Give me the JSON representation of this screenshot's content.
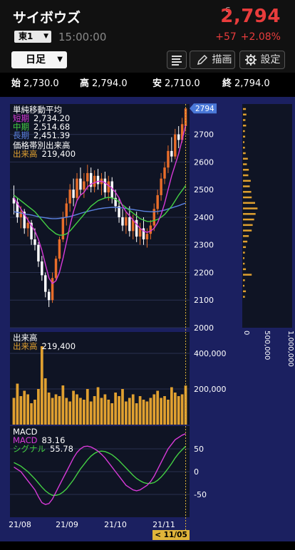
{
  "header": {
    "company": "サイボウズ",
    "market": "東1",
    "time": "15:00:00",
    "price_flag": "C",
    "price": "2,794",
    "change": "+57",
    "change_pct": "+2.08%"
  },
  "toolbar": {
    "period": "日足",
    "draw_label": "描画",
    "settings_label": "設定"
  },
  "ohlc": [
    {
      "key": "始",
      "value": "2,730.0"
    },
    {
      "key": "高",
      "value": "2,794.0"
    },
    {
      "key": "安",
      "value": "2,710.0"
    },
    {
      "key": "終",
      "value": "2,794.0"
    }
  ],
  "colors": {
    "background": "#1b2060",
    "panel": "#0f1424",
    "up": "#e86d2a",
    "down": "#ffffff",
    "ma_short": "#d83ad8",
    "ma_mid": "#44d044",
    "ma_long": "#5b82e0",
    "volume": "#e0a030",
    "price_tag": "#4a78d8",
    "price_red": "#e83c3c"
  },
  "legend_price": {
    "title": "単純移動平均",
    "short_label": "短期",
    "short_value": "2,734.20",
    "mid_label": "中期",
    "mid_value": "2,514.68",
    "long_label": "長期",
    "long_value": "2,451.39",
    "band_title": "価格帯別出来高",
    "vol_label": "出来高",
    "vol_value": "219,400"
  },
  "legend_volume": {
    "title": "出来高",
    "vol_label": "出来高",
    "vol_value": "219,400"
  },
  "legend_macd": {
    "title": "MACD",
    "macd_label": "MACD",
    "macd_value": "83.16",
    "signal_label": "シグナル",
    "signal_value": "55.78"
  },
  "date_badge": "< 11/05 >",
  "chart_data": {
    "type": "candlestick",
    "price_axis": {
      "ticks": [
        "2700",
        "2600",
        "2500",
        "2400",
        "2300",
        "2200",
        "2100",
        "2000"
      ],
      "range": [
        2000,
        2810
      ]
    },
    "last_price_tag": "2794",
    "x_labels": [
      "21/08",
      "21/09",
      "21/10",
      "21/11"
    ],
    "volume_axis": {
      "ticks": [
        "400,000",
        "200,000"
      ]
    },
    "macd_axis": {
      "ticks": [
        "50",
        "0",
        "-50"
      ]
    },
    "band_axis": {
      "ticks": [
        "0",
        "500,000",
        "1,000,000"
      ]
    },
    "candles": [
      {
        "o": 2470,
        "h": 2515,
        "l": 2410,
        "c": 2450
      },
      {
        "o": 2455,
        "h": 2470,
        "l": 2380,
        "c": 2400
      },
      {
        "o": 2400,
        "h": 2440,
        "l": 2360,
        "c": 2420
      },
      {
        "o": 2420,
        "h": 2430,
        "l": 2340,
        "c": 2360
      },
      {
        "o": 2360,
        "h": 2400,
        "l": 2330,
        "c": 2380
      },
      {
        "o": 2380,
        "h": 2390,
        "l": 2300,
        "c": 2320
      },
      {
        "o": 2320,
        "h": 2360,
        "l": 2280,
        "c": 2300
      },
      {
        "o": 2300,
        "h": 2310,
        "l": 2220,
        "c": 2240
      },
      {
        "o": 2240,
        "h": 2260,
        "l": 2170,
        "c": 2190
      },
      {
        "o": 2190,
        "h": 2200,
        "l": 2110,
        "c": 2130
      },
      {
        "o": 2130,
        "h": 2140,
        "l": 2075,
        "c": 2100
      },
      {
        "o": 2100,
        "h": 2200,
        "l": 2090,
        "c": 2180
      },
      {
        "o": 2180,
        "h": 2260,
        "l": 2170,
        "c": 2250
      },
      {
        "o": 2250,
        "h": 2330,
        "l": 2240,
        "c": 2320
      },
      {
        "o": 2320,
        "h": 2420,
        "l": 2310,
        "c": 2400
      },
      {
        "o": 2400,
        "h": 2470,
        "l": 2370,
        "c": 2450
      },
      {
        "o": 2450,
        "h": 2520,
        "l": 2420,
        "c": 2500
      },
      {
        "o": 2500,
        "h": 2540,
        "l": 2440,
        "c": 2470
      },
      {
        "o": 2470,
        "h": 2560,
        "l": 2460,
        "c": 2540
      },
      {
        "o": 2540,
        "h": 2580,
        "l": 2480,
        "c": 2500
      },
      {
        "o": 2500,
        "h": 2560,
        "l": 2470,
        "c": 2530
      },
      {
        "o": 2530,
        "h": 2590,
        "l": 2500,
        "c": 2560
      },
      {
        "o": 2560,
        "h": 2580,
        "l": 2490,
        "c": 2510
      },
      {
        "o": 2510,
        "h": 2570,
        "l": 2490,
        "c": 2550
      },
      {
        "o": 2550,
        "h": 2575,
        "l": 2500,
        "c": 2520
      },
      {
        "o": 2520,
        "h": 2560,
        "l": 2480,
        "c": 2540
      },
      {
        "o": 2540,
        "h": 2565,
        "l": 2470,
        "c": 2490
      },
      {
        "o": 2490,
        "h": 2550,
        "l": 2460,
        "c": 2530
      },
      {
        "o": 2530,
        "h": 2545,
        "l": 2450,
        "c": 2470
      },
      {
        "o": 2470,
        "h": 2500,
        "l": 2420,
        "c": 2440
      },
      {
        "o": 2440,
        "h": 2470,
        "l": 2380,
        "c": 2400
      },
      {
        "o": 2400,
        "h": 2430,
        "l": 2350,
        "c": 2370
      },
      {
        "o": 2370,
        "h": 2420,
        "l": 2340,
        "c": 2400
      },
      {
        "o": 2400,
        "h": 2440,
        "l": 2330,
        "c": 2350
      },
      {
        "o": 2350,
        "h": 2410,
        "l": 2320,
        "c": 2390
      },
      {
        "o": 2390,
        "h": 2420,
        "l": 2310,
        "c": 2330
      },
      {
        "o": 2330,
        "h": 2380,
        "l": 2300,
        "c": 2360
      },
      {
        "o": 2360,
        "h": 2400,
        "l": 2300,
        "c": 2320
      },
      {
        "o": 2320,
        "h": 2360,
        "l": 2290,
        "c": 2340
      },
      {
        "o": 2340,
        "h": 2390,
        "l": 2320,
        "c": 2370
      },
      {
        "o": 2370,
        "h": 2450,
        "l": 2350,
        "c": 2430
      },
      {
        "o": 2430,
        "h": 2500,
        "l": 2410,
        "c": 2480
      },
      {
        "o": 2480,
        "h": 2560,
        "l": 2460,
        "c": 2540
      },
      {
        "o": 2540,
        "h": 2600,
        "l": 2520,
        "c": 2580
      },
      {
        "o": 2580,
        "h": 2660,
        "l": 2560,
        "c": 2640
      },
      {
        "o": 2640,
        "h": 2690,
        "l": 2600,
        "c": 2620
      },
      {
        "o": 2620,
        "h": 2720,
        "l": 2610,
        "c": 2700
      },
      {
        "o": 2700,
        "h": 2730,
        "l": 2650,
        "c": 2680
      },
      {
        "o": 2680,
        "h": 2760,
        "l": 2670,
        "c": 2737
      },
      {
        "o": 2730,
        "h": 2794,
        "l": 2710,
        "c": 2794
      }
    ],
    "ma_short": [
      2470,
      2450,
      2430,
      2410,
      2390,
      2370,
      2350,
      2320,
      2280,
      2230,
      2180,
      2160,
      2170,
      2200,
      2250,
      2310,
      2370,
      2420,
      2460,
      2480,
      2490,
      2510,
      2520,
      2525,
      2530,
      2530,
      2525,
      2515,
      2505,
      2490,
      2470,
      2440,
      2420,
      2405,
      2390,
      2375,
      2360,
      2350,
      2345,
      2350,
      2360,
      2380,
      2410,
      2450,
      2500,
      2550,
      2590,
      2630,
      2680,
      2734
    ],
    "ma_mid": [
      2480,
      2470,
      2460,
      2450,
      2440,
      2430,
      2420,
      2405,
      2390,
      2375,
      2360,
      2350,
      2340,
      2335,
      2335,
      2340,
      2350,
      2365,
      2380,
      2395,
      2410,
      2425,
      2440,
      2450,
      2460,
      2465,
      2470,
      2472,
      2470,
      2465,
      2455,
      2445,
      2435,
      2425,
      2415,
      2405,
      2395,
      2390,
      2385,
      2385,
      2388,
      2392,
      2400,
      2410,
      2425,
      2440,
      2460,
      2480,
      2497,
      2515
    ],
    "ma_long": [
      2420,
      2418,
      2415,
      2412,
      2410,
      2408,
      2405,
      2402,
      2400,
      2398,
      2396,
      2395,
      2395,
      2396,
      2398,
      2400,
      2403,
      2406,
      2410,
      2414,
      2418,
      2421,
      2424,
      2427,
      2430,
      2432,
      2434,
      2435,
      2436,
      2436,
      2435,
      2434,
      2432,
      2430,
      2428,
      2426,
      2424,
      2422,
      2421,
      2420,
      2420,
      2421,
      2423,
      2426,
      2430,
      2434,
      2438,
      2442,
      2447,
      2451
    ],
    "volume": [
      150000,
      230000,
      160000,
      190000,
      170000,
      120000,
      140000,
      200000,
      440000,
      260000,
      180000,
      150000,
      170000,
      160000,
      220000,
      150000,
      130000,
      190000,
      170000,
      150000,
      140000,
      200000,
      130000,
      160000,
      210000,
      150000,
      170000,
      140000,
      120000,
      180000,
      160000,
      200000,
      130000,
      150000,
      170000,
      120000,
      160000,
      140000,
      130000,
      150000,
      170000,
      190000,
      150000,
      160000,
      140000,
      210000,
      180000,
      160000,
      170000,
      219400
    ],
    "macd": [
      10,
      5,
      0,
      -10,
      -20,
      -30,
      -40,
      -55,
      -68,
      -72,
      -70,
      -60,
      -45,
      -30,
      -15,
      0,
      15,
      30,
      42,
      50,
      55,
      56,
      54,
      50,
      45,
      38,
      30,
      20,
      10,
      0,
      -10,
      -20,
      -30,
      -35,
      -40,
      -42,
      -40,
      -35,
      -30,
      -22,
      -10,
      5,
      20,
      35,
      50,
      60,
      70,
      75,
      80,
      83.16
    ],
    "signal": [
      20,
      16,
      12,
      6,
      0,
      -8,
      -16,
      -25,
      -34,
      -42,
      -48,
      -52,
      -52,
      -50,
      -45,
      -38,
      -28,
      -18,
      -6,
      6,
      16,
      26,
      34,
      40,
      44,
      45,
      44,
      41,
      37,
      31,
      24,
      16,
      8,
      0,
      -8,
      -15,
      -20,
      -24,
      -26,
      -26,
      -24,
      -19,
      -12,
      -3,
      7,
      18,
      30,
      40,
      48,
      55.78
    ],
    "volume_by_price": [
      {
        "p": 2790,
        "v": 60000
      },
      {
        "p": 2770,
        "v": 70000
      },
      {
        "p": 2750,
        "v": 50000
      },
      {
        "p": 2730,
        "v": 65000
      },
      {
        "p": 2710,
        "v": 40000
      },
      {
        "p": 2690,
        "v": 45000
      },
      {
        "p": 2670,
        "v": 30000
      },
      {
        "p": 2650,
        "v": 40000
      },
      {
        "p": 2630,
        "v": 55000
      },
      {
        "p": 2610,
        "v": 100000
      },
      {
        "p": 2590,
        "v": 80000
      },
      {
        "p": 2570,
        "v": 120000
      },
      {
        "p": 2550,
        "v": 110000
      },
      {
        "p": 2530,
        "v": 160000
      },
      {
        "p": 2510,
        "v": 140000
      },
      {
        "p": 2490,
        "v": 170000
      },
      {
        "p": 2470,
        "v": 180000
      },
      {
        "p": 2450,
        "v": 250000
      },
      {
        "p": 2430,
        "v": 300000
      },
      {
        "p": 2410,
        "v": 260000
      },
      {
        "p": 2390,
        "v": 230000
      },
      {
        "p": 2370,
        "v": 200000
      },
      {
        "p": 2350,
        "v": 180000
      },
      {
        "p": 2330,
        "v": 120000
      },
      {
        "p": 2310,
        "v": 90000
      },
      {
        "p": 2290,
        "v": 60000
      },
      {
        "p": 2270,
        "v": 40000
      },
      {
        "p": 2250,
        "v": 30000
      },
      {
        "p": 2230,
        "v": 35000
      },
      {
        "p": 2210,
        "v": 60000
      },
      {
        "p": 2190,
        "v": 180000
      },
      {
        "p": 2170,
        "v": 40000
      },
      {
        "p": 2150,
        "v": 30000
      },
      {
        "p": 2130,
        "v": 60000
      },
      {
        "p": 2110,
        "v": 40000
      }
    ]
  }
}
